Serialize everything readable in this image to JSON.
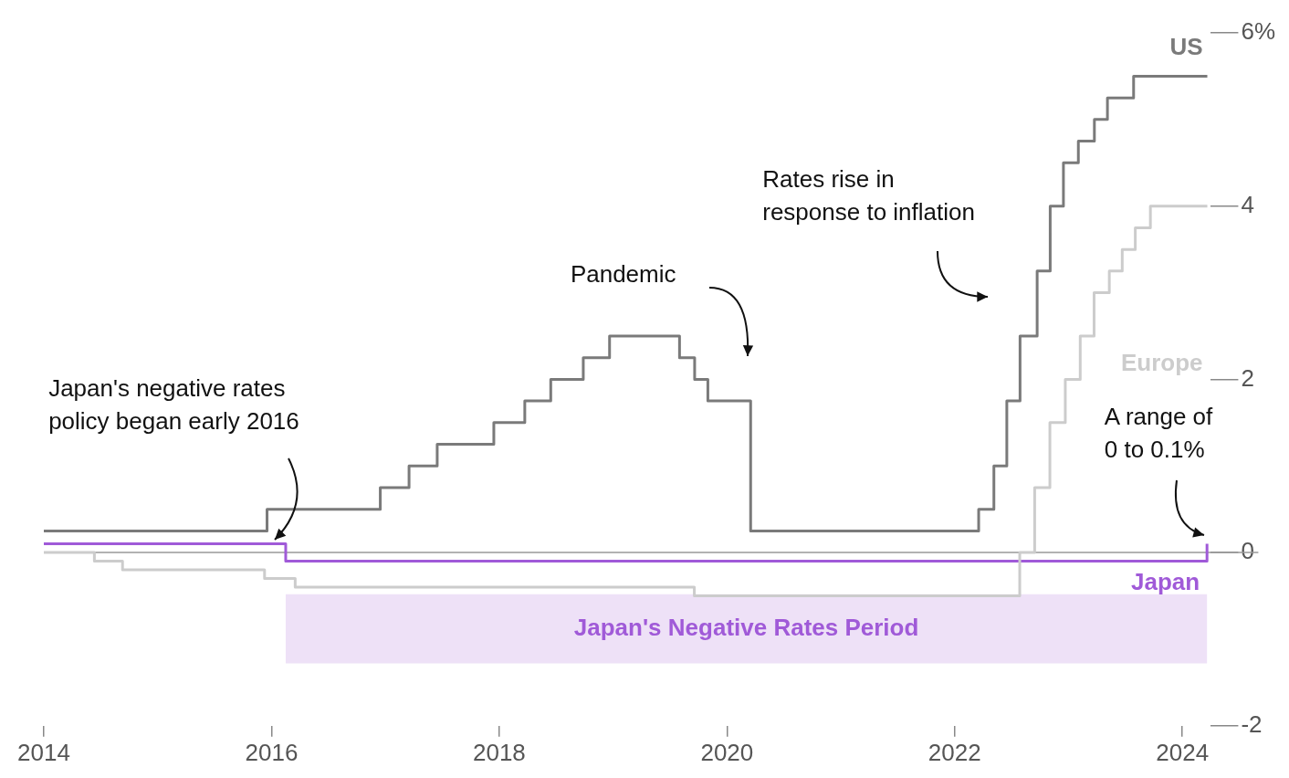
{
  "chart_data": {
    "type": "step",
    "xlim": [
      "2014",
      "2024-04"
    ],
    "ylim": [
      -2,
      6
    ],
    "xticks": [
      "2014",
      "2016",
      "2018",
      "2020",
      "2022",
      "2024"
    ],
    "yticks": [
      -2,
      0,
      2,
      4,
      {
        "value": 6,
        "label": "6%"
      }
    ],
    "series": [
      {
        "name": "US",
        "color": "#7a7a7a",
        "x": [
          "2014-01-01",
          "2015-12-17",
          "2016-12-15",
          "2017-03-16",
          "2017-06-15",
          "2017-12-14",
          "2018-03-22",
          "2018-06-14",
          "2018-09-27",
          "2018-12-20",
          "2019-08-01",
          "2019-09-19",
          "2019-10-31",
          "2020-03-16",
          "2022-03-17",
          "2022-05-05",
          "2022-06-16",
          "2022-07-28",
          "2022-09-22",
          "2022-11-03",
          "2022-12-15",
          "2023-02-02",
          "2023-03-23",
          "2023-05-04",
          "2023-07-27",
          "2024-03-20"
        ],
        "values": [
          0.25,
          0.5,
          0.75,
          1.0,
          1.25,
          1.5,
          1.75,
          2.0,
          2.25,
          2.5,
          2.25,
          2.0,
          1.75,
          0.25,
          0.5,
          1.0,
          1.75,
          2.5,
          3.25,
          4.0,
          4.5,
          4.75,
          5.0,
          5.25,
          5.5,
          5.5
        ]
      },
      {
        "name": "Europe",
        "color": "#cccccc",
        "x": [
          "2014-01-01",
          "2014-06-11",
          "2014-09-10",
          "2015-12-09",
          "2016-03-16",
          "2019-09-18",
          "2022-07-27",
          "2022-09-14",
          "2022-11-02",
          "2022-12-21",
          "2023-02-08",
          "2023-03-22",
          "2023-05-10",
          "2023-06-21",
          "2023-08-02",
          "2023-09-20",
          "2024-03-20"
        ],
        "values": [
          0,
          -0.1,
          -0.2,
          -0.3,
          -0.4,
          -0.5,
          0,
          0.75,
          1.5,
          2.0,
          2.5,
          3.0,
          3.25,
          3.5,
          3.75,
          4.0,
          4.0
        ]
      },
      {
        "name": "Japan",
        "color": "#a05ad8",
        "x": [
          "2014-01-01",
          "2016-02-16",
          "2024-03-19"
        ],
        "values": [
          0.1,
          -0.1,
          0.1
        ]
      }
    ],
    "ref_lines": [
      {
        "axis": "y",
        "value": 0,
        "color": "#999999"
      }
    ],
    "bands": [
      {
        "axis": "x",
        "from": "2016-02-16",
        "to": "2024-03-19",
        "label": "Japan's Negative Rates Period",
        "color": "#eee1f7"
      }
    ],
    "annotations": [
      "Japan's negative rates\npolicy began early 2016",
      "Pandemic",
      "Rates rise in\nresponse to inflation",
      "A range of\n0 to 0.1%"
    ],
    "legend": "right"
  }
}
